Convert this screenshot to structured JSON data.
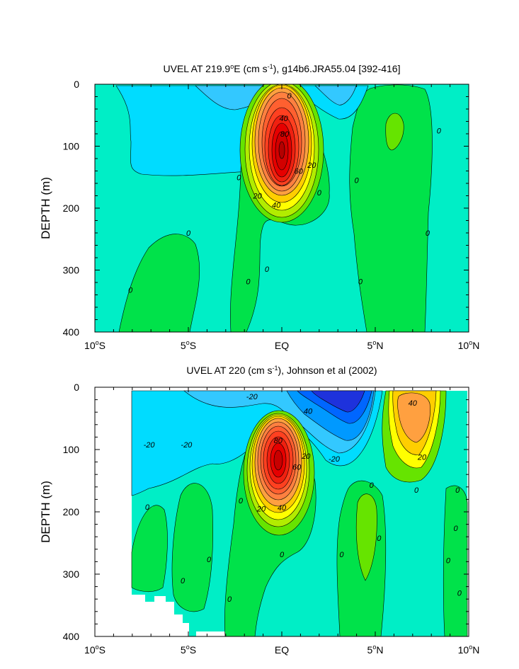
{
  "chart_data": [
    {
      "type": "heatmap",
      "title_main": "UVEL AT 219.9",
      "title_unit_open": "E (cm s",
      "title_unit_exp": "-1",
      "title_rest": "), g14b6.JRA55.04 [392-416]",
      "title_degree": "o",
      "ylabel": "DEPTH (m)",
      "xlim": [
        -10,
        10
      ],
      "ylim": [
        0,
        400
      ],
      "y_inverted": true,
      "x_ticks": [
        {
          "value": -10,
          "num": "10",
          "sup": "o",
          "suffix": "S"
        },
        {
          "value": -5,
          "num": "5",
          "sup": "o",
          "suffix": "S"
        },
        {
          "value": 0,
          "num": "EQ",
          "sup": "",
          "suffix": ""
        },
        {
          "value": 5,
          "num": "5",
          "sup": "o",
          "suffix": "N"
        },
        {
          "value": 10,
          "num": "10",
          "sup": "o",
          "suffix": "N"
        }
      ],
      "y_ticks": [
        0,
        100,
        200,
        300,
        400
      ],
      "contour_interval": 10,
      "contour_labels": [
        {
          "text": "0",
          "x": 0.4,
          "y": 18
        },
        {
          "text": "40",
          "x": 0.1,
          "y": 55
        },
        {
          "text": "80",
          "x": 0.15,
          "y": 80
        },
        {
          "text": "20",
          "x": 1.6,
          "y": 130
        },
        {
          "text": "60",
          "x": 0.9,
          "y": 140
        },
        {
          "text": "0",
          "x": -2.3,
          "y": 150
        },
        {
          "text": "0",
          "x": 4.0,
          "y": 155
        },
        {
          "text": "0",
          "x": 2.0,
          "y": 175
        },
        {
          "text": "20",
          "x": -1.3,
          "y": 180
        },
        {
          "text": "40",
          "x": -0.3,
          "y": 195
        },
        {
          "text": "0",
          "x": 8.4,
          "y": 75
        },
        {
          "text": "0",
          "x": -5.0,
          "y": 240
        },
        {
          "text": "0",
          "x": 7.8,
          "y": 240
        },
        {
          "text": "0",
          "x": -0.8,
          "y": 298
        },
        {
          "text": "0",
          "x": -1.8,
          "y": 318
        },
        {
          "text": "0",
          "x": 4.2,
          "y": 318
        },
        {
          "text": "0",
          "x": -8.1,
          "y": 332
        }
      ]
    },
    {
      "type": "heatmap",
      "title_main": "UVEL AT 220 (cm s",
      "title_unit_exp": "-1",
      "title_rest": "), Johnson et al (2002)",
      "ylabel": "DEPTH (m)",
      "xlim": [
        -10,
        10
      ],
      "ylim": [
        0,
        400
      ],
      "y_inverted": true,
      "x_ticks": [
        {
          "value": -10,
          "num": "10",
          "sup": "o",
          "suffix": "S"
        },
        {
          "value": -5,
          "num": "5",
          "sup": "o",
          "suffix": "S"
        },
        {
          "value": 0,
          "num": "EQ",
          "sup": "",
          "suffix": ""
        },
        {
          "value": 5,
          "num": "5",
          "sup": "o",
          "suffix": "N"
        },
        {
          "value": 10,
          "num": "10",
          "sup": "o",
          "suffix": "N"
        }
      ],
      "y_ticks": [
        0,
        100,
        200,
        300,
        400
      ],
      "data_x_range": [
        -8,
        9.9
      ],
      "contour_interval": 10,
      "contour_labels": [
        {
          "text": "-20",
          "x": -1.6,
          "y": 15
        },
        {
          "text": "40",
          "x": 1.4,
          "y": 38
        },
        {
          "text": "40",
          "x": 7.0,
          "y": 25
        },
        {
          "text": "-20",
          "x": -7.1,
          "y": 92
        },
        {
          "text": "-20",
          "x": -5.1,
          "y": 92
        },
        {
          "text": "80",
          "x": -0.2,
          "y": 85
        },
        {
          "text": "20",
          "x": 1.3,
          "y": 110
        },
        {
          "text": "60",
          "x": 0.8,
          "y": 128
        },
        {
          "text": "-20",
          "x": 2.8,
          "y": 115
        },
        {
          "text": "20",
          "x": 7.5,
          "y": 112
        },
        {
          "text": "0",
          "x": 4.8,
          "y": 157
        },
        {
          "text": "0",
          "x": 7.2,
          "y": 165
        },
        {
          "text": "0",
          "x": 9.4,
          "y": 165
        },
        {
          "text": "0",
          "x": -2.2,
          "y": 182
        },
        {
          "text": "0",
          "x": -7.2,
          "y": 192
        },
        {
          "text": "20",
          "x": -1.1,
          "y": 195
        },
        {
          "text": "40",
          "x": 0.0,
          "y": 193
        },
        {
          "text": "0",
          "x": 9.3,
          "y": 226
        },
        {
          "text": "0",
          "x": 5.2,
          "y": 242
        },
        {
          "text": "0",
          "x": 0.0,
          "y": 268
        },
        {
          "text": "0",
          "x": 3.2,
          "y": 268
        },
        {
          "text": "0",
          "x": -3.9,
          "y": 276
        },
        {
          "text": "0",
          "x": 8.9,
          "y": 278
        },
        {
          "text": "0",
          "x": -5.3,
          "y": 310
        },
        {
          "text": "0",
          "x": 9.5,
          "y": 330
        },
        {
          "text": "0",
          "x": -2.8,
          "y": 340
        }
      ]
    }
  ]
}
